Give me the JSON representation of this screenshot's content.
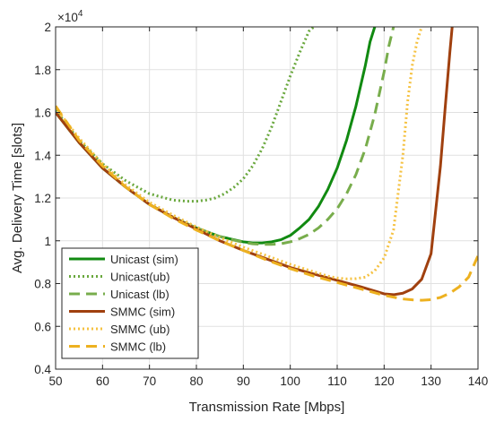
{
  "chart_data": {
    "type": "line",
    "xlabel": "Transmission Rate [Mbps]",
    "ylabel": "Avg. Delivery Time [slots]",
    "exponent_label": "×10",
    "exponent_power": "4",
    "xlim": [
      50,
      140
    ],
    "ylim": [
      0.4,
      2.0
    ],
    "y_scale_factor": 10000,
    "grid": true,
    "legend_position": "bottom-left",
    "xticks": [
      "50",
      "60",
      "70",
      "80",
      "90",
      "100",
      "110",
      "120",
      "130",
      "140"
    ],
    "yticks": [
      "0.4",
      "0.6",
      "0.8",
      "1",
      "1.2",
      "1.4",
      "1.6",
      "1.8",
      "2"
    ],
    "series": [
      {
        "name": "Unicast (sim)",
        "color": "#118a11",
        "style": "solid",
        "x": [
          50,
          55,
          60,
          65,
          70,
          75,
          80,
          85,
          88,
          90,
          92,
          94,
          96,
          98,
          100,
          102,
          104,
          106,
          108,
          110,
          112,
          114,
          116,
          117,
          118
        ],
        "y": [
          1.6,
          1.46,
          1.34,
          1.25,
          1.17,
          1.11,
          1.06,
          1.02,
          1.005,
          0.995,
          0.99,
          0.99,
          0.995,
          1.005,
          1.025,
          1.06,
          1.1,
          1.16,
          1.24,
          1.34,
          1.47,
          1.63,
          1.82,
          1.93,
          2.0
        ]
      },
      {
        "name": "Unicast(ub)",
        "color": "#6aa83e",
        "style": "dotted",
        "x": [
          50,
          55,
          60,
          65,
          70,
          75,
          78,
          80,
          82,
          84,
          86,
          88,
          90,
          92,
          94,
          96,
          98,
          100,
          102,
          104,
          105
        ],
        "y": [
          1.61,
          1.47,
          1.36,
          1.28,
          1.22,
          1.19,
          1.185,
          1.185,
          1.19,
          1.2,
          1.22,
          1.25,
          1.29,
          1.35,
          1.43,
          1.53,
          1.65,
          1.77,
          1.88,
          1.98,
          2.0
        ]
      },
      {
        "name": "Unicast (lb)",
        "color": "#78ad4c",
        "style": "dashed",
        "x": [
          50,
          55,
          60,
          65,
          70,
          75,
          80,
          85,
          88,
          90,
          92,
          94,
          96,
          98,
          100,
          102,
          104,
          106,
          108,
          110,
          112,
          114,
          116,
          118,
          120,
          121,
          122
        ],
        "y": [
          1.6,
          1.46,
          1.34,
          1.25,
          1.17,
          1.11,
          1.06,
          1.02,
          1.003,
          0.993,
          0.986,
          0.983,
          0.983,
          0.986,
          0.995,
          1.01,
          1.03,
          1.06,
          1.1,
          1.15,
          1.22,
          1.31,
          1.43,
          1.59,
          1.79,
          1.91,
          2.0
        ]
      },
      {
        "name": "SMMC (sim)",
        "color": "#a0400f",
        "style": "solid",
        "x": [
          50,
          55,
          60,
          65,
          70,
          75,
          80,
          85,
          90,
          95,
          100,
          105,
          110,
          115,
          118,
          120,
          122,
          124,
          126,
          128,
          130,
          132,
          133,
          134,
          134.5
        ],
        "y": [
          1.6,
          1.46,
          1.34,
          1.25,
          1.17,
          1.11,
          1.055,
          1.0,
          0.955,
          0.915,
          0.875,
          0.845,
          0.815,
          0.785,
          0.765,
          0.752,
          0.748,
          0.755,
          0.775,
          0.82,
          0.94,
          1.35,
          1.62,
          1.88,
          2.0
        ]
      },
      {
        "name": "SMMC (ub)",
        "color": "#f5c242",
        "style": "dotted",
        "x": [
          50,
          55,
          60,
          65,
          70,
          75,
          80,
          85,
          90,
          95,
          100,
          105,
          108,
          110,
          112,
          114,
          116,
          118,
          120,
          122,
          124,
          125,
          126,
          127,
          128
        ],
        "y": [
          1.62,
          1.48,
          1.36,
          1.26,
          1.18,
          1.12,
          1.065,
          1.015,
          0.97,
          0.93,
          0.89,
          0.855,
          0.835,
          0.826,
          0.822,
          0.823,
          0.83,
          0.86,
          0.92,
          1.05,
          1.4,
          1.65,
          1.82,
          1.93,
          2.0
        ]
      },
      {
        "name": "SMMC (lb)",
        "color": "#edb120",
        "style": "dashed",
        "x": [
          50,
          55,
          60,
          65,
          70,
          75,
          80,
          85,
          90,
          95,
          100,
          105,
          110,
          115,
          120,
          124,
          126,
          128,
          130,
          132,
          134,
          136,
          138,
          140
        ],
        "y": [
          1.63,
          1.47,
          1.35,
          1.25,
          1.17,
          1.105,
          1.05,
          1.0,
          0.955,
          0.91,
          0.87,
          0.835,
          0.805,
          0.775,
          0.745,
          0.728,
          0.724,
          0.722,
          0.725,
          0.735,
          0.755,
          0.785,
          0.83,
          0.93
        ]
      }
    ]
  }
}
